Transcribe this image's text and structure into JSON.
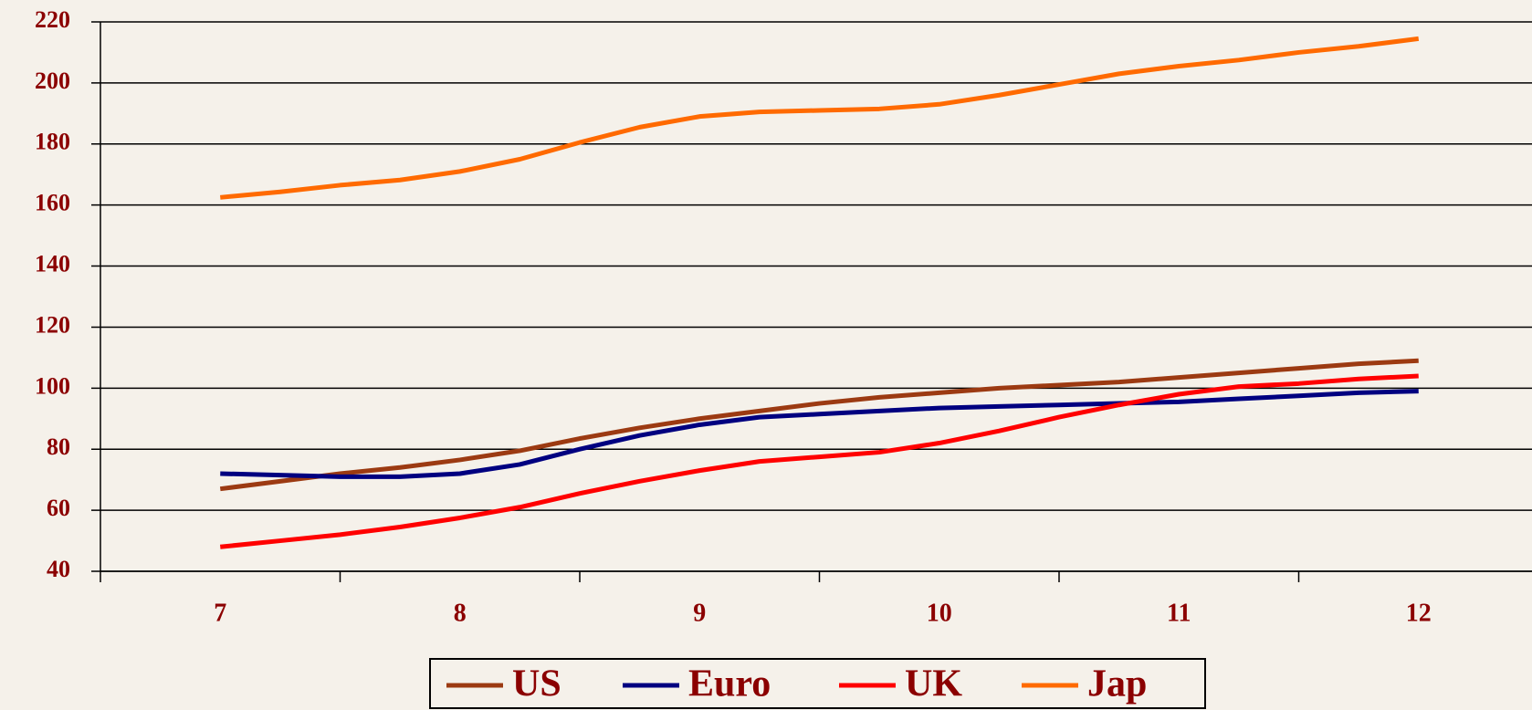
{
  "chart_data": {
    "type": "line",
    "categories": [
      "7",
      null,
      null,
      null,
      "8",
      null,
      null,
      null,
      "9",
      null,
      null,
      null,
      "10",
      null,
      null,
      null,
      "11",
      null,
      null,
      null,
      "12"
    ],
    "series": [
      {
        "name": "US",
        "color": "#9c3a12",
        "values": [
          67,
          69.5,
          72,
          74,
          76.5,
          79.5,
          83.5,
          87,
          90,
          92.5,
          95,
          97,
          98.5,
          100,
          101,
          102,
          103.5,
          105,
          106.5,
          108,
          109
        ]
      },
      {
        "name": "Euro",
        "color": "#000080",
        "values": [
          72,
          71.5,
          71,
          71,
          72,
          75,
          80,
          84.5,
          88,
          90.5,
          91.5,
          92.5,
          93.5,
          94,
          94.5,
          95,
          95.5,
          96.5,
          97.5,
          98.5,
          99
        ]
      },
      {
        "name": "UK",
        "color": "#ff0000",
        "values": [
          48,
          50,
          52,
          54.5,
          57.5,
          61,
          65.5,
          69.5,
          73,
          76,
          77.5,
          79,
          82,
          86,
          90.5,
          94.5,
          98,
          100.5,
          101.5,
          103,
          104
        ]
      },
      {
        "name": "Jap",
        "color": "#ff6a00",
        "values": [
          162.5,
          164.3,
          166.5,
          168.2,
          171,
          175,
          180.5,
          185.5,
          189,
          190.5,
          191,
          191.5,
          193,
          196,
          199.5,
          203,
          205.5,
          207.5,
          210,
          212,
          214.5
        ]
      }
    ],
    "ylim": [
      40,
      220
    ],
    "yticks": [
      40,
      60,
      80,
      100,
      120,
      140,
      160,
      180,
      200,
      220
    ],
    "grid": true,
    "legend": "bottom"
  }
}
